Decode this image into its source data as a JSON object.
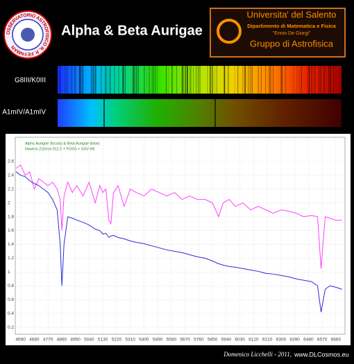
{
  "header": {
    "title": "Alpha & Beta Aurigae",
    "observatory": "OSSERVATORIO ASTROFISICO R. P. FEYNMAN",
    "university": "Universita' del Salento",
    "department": "Dipartimento di Matematica e Fisica",
    "dedication": "\"Ennio De Giorgi\"",
    "group": "Gruppo di Astrofisica"
  },
  "spectra": {
    "labels": [
      "G8III/K0III",
      "A1mIV/A1mIV"
    ]
  },
  "footer": {
    "credit": "Domenico Licchelli - 2011,",
    "site": "www.DLCosmos.eu"
  },
  "chart_data": {
    "type": "line",
    "annotations": [
      "Alpha Aurigae (fucsia) & Beta Aurigae (blue)",
      "Newton 210mm f/11.5 + FOSS + SXV-H9"
    ],
    "x": [
      4560,
      4590,
      4620,
      4650,
      4680,
      4710,
      4740,
      4770,
      4800,
      4830,
      4850,
      4861,
      4875,
      4900,
      4930,
      4960,
      5000,
      5040,
      5080,
      5110,
      5130,
      5150,
      5170,
      5183,
      5200,
      5230,
      5270,
      5310,
      5350,
      5400,
      5450,
      5500,
      5550,
      5600,
      5650,
      5700,
      5750,
      5800,
      5850,
      5890,
      5920,
      5960,
      6000,
      6050,
      6100,
      6150,
      6200,
      6250,
      6300,
      6350,
      6400,
      6450,
      6500,
      6540,
      6563,
      6590,
      6620,
      6660,
      6700
    ],
    "series": [
      {
        "color": "#ff40ff",
        "values": [
          2.5,
          2.55,
          2.4,
          2.45,
          2.2,
          2.35,
          2.3,
          2.25,
          2.3,
          2.2,
          2.05,
          1.6,
          2.1,
          2.3,
          2.15,
          2.25,
          2.1,
          2.3,
          2.0,
          2.25,
          2.15,
          2.2,
          1.75,
          1.7,
          2.15,
          2.25,
          1.95,
          2.2,
          2.15,
          2.1,
          2.2,
          2.15,
          2.1,
          2.15,
          2.05,
          2.1,
          2.05,
          2.05,
          2.0,
          1.8,
          2.0,
          2.05,
          1.95,
          2.0,
          1.9,
          1.95,
          1.9,
          1.85,
          1.9,
          1.88,
          1.85,
          1.8,
          1.82,
          1.8,
          1.05,
          1.8,
          1.78,
          1.75,
          1.75
        ]
      },
      {
        "color": "#2a2ad8",
        "values": [
          2.45,
          2.4,
          2.38,
          2.32,
          2.28,
          2.25,
          2.2,
          2.15,
          2.05,
          1.9,
          1.4,
          0.8,
          1.4,
          1.8,
          1.78,
          1.75,
          1.72,
          1.68,
          1.62,
          1.6,
          1.55,
          1.56,
          1.5,
          1.52,
          1.53,
          1.5,
          1.48,
          1.45,
          1.43,
          1.41,
          1.38,
          1.35,
          1.32,
          1.3,
          1.28,
          1.25,
          1.22,
          1.2,
          1.16,
          1.12,
          1.1,
          1.08,
          1.07,
          1.05,
          1.03,
          1.01,
          0.98,
          0.97,
          0.95,
          0.93,
          0.9,
          0.88,
          0.86,
          0.8,
          0.42,
          0.75,
          0.8,
          0.78,
          0.75
        ]
      }
    ],
    "xlim": [
      4555,
      6720
    ],
    "xticks": [
      4590,
      4680,
      4770,
      4860,
      4950,
      5040,
      5130,
      5220,
      5310,
      5400,
      5490,
      5580,
      5670,
      5760,
      5850,
      5940,
      6030,
      6120,
      6210,
      6300,
      6390,
      6480,
      6570,
      6660
    ],
    "ylim": [
      0.1,
      2.95
    ],
    "yticks": [
      0.2,
      0.4,
      0.6,
      0.8,
      1,
      1.2,
      1.4,
      1.6,
      1.8,
      2,
      2.2,
      2.4,
      2.6
    ],
    "grid": true
  }
}
